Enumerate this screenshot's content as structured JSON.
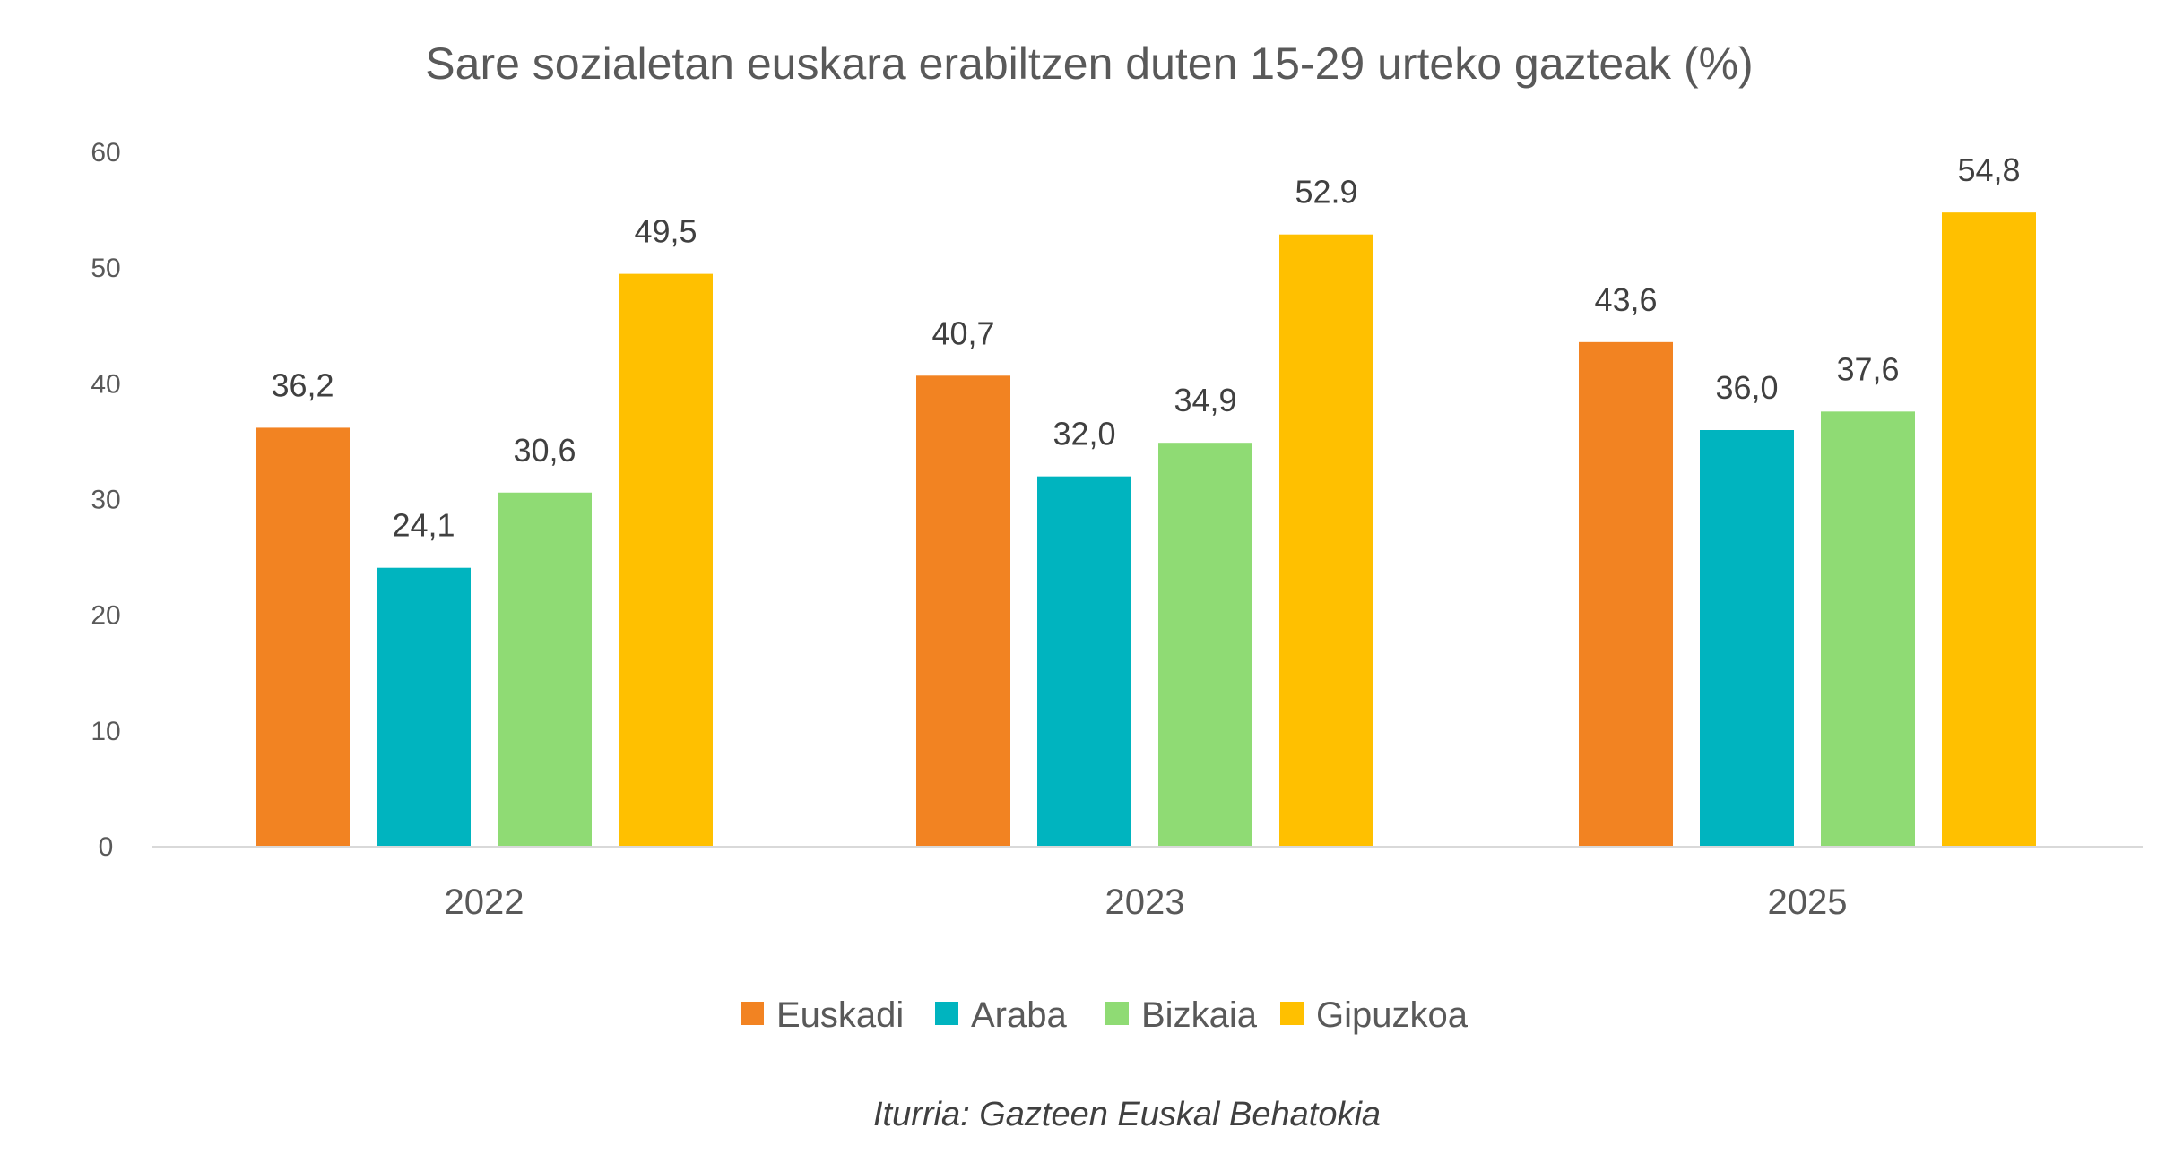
{
  "chart_data": {
    "type": "bar",
    "title": "Sare sozialetan euskara erabiltzen duten 15-29 urteko gazteak (%)",
    "categories": [
      "2022",
      "2023",
      "2025"
    ],
    "series": [
      {
        "name": "Euskadi",
        "color": "#F28322",
        "values": [
          36.2,
          40.7,
          43.6
        ],
        "labels": [
          "36,2",
          "40,7",
          "43,6"
        ]
      },
      {
        "name": "Araba",
        "color": "#00B4BF",
        "values": [
          24.1,
          32.0,
          36.0
        ],
        "labels": [
          "24,1",
          "32,0",
          "36,0"
        ]
      },
      {
        "name": "Bizkaia",
        "color": "#8FDB74",
        "values": [
          30.6,
          34.9,
          37.6
        ],
        "labels": [
          "30,6",
          "34,9",
          "37,6"
        ]
      },
      {
        "name": "Gipuzkoa",
        "color": "#FFC000",
        "values": [
          49.5,
          52.9,
          54.8
        ],
        "labels": [
          "49,5",
          "52.9",
          "54,8"
        ]
      }
    ],
    "ylim": [
      0,
      60
    ],
    "yticks": [
      0,
      10,
      20,
      30,
      40,
      50,
      60
    ],
    "xlabel": "",
    "ylabel": "",
    "grid": false,
    "legend": "bottom",
    "source": "Iturria: Gazteen Euskal Behatokia"
  }
}
